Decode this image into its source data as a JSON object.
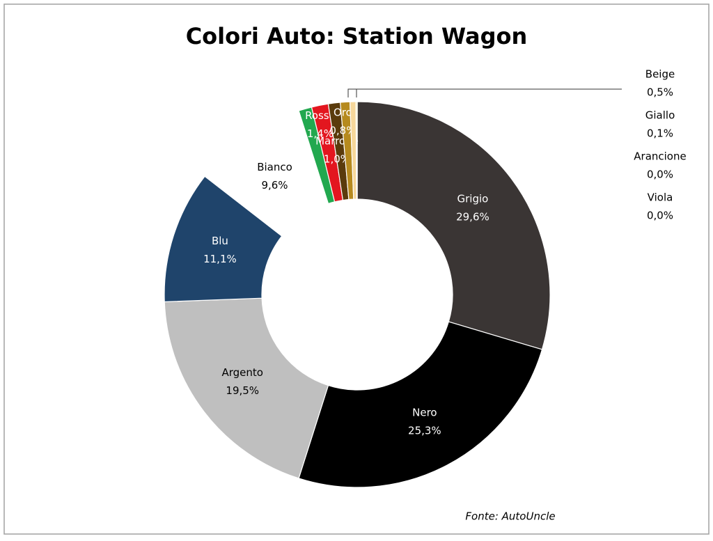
{
  "chart_data": {
    "type": "donut",
    "title": "Colori Auto: Station Wagon",
    "source": "Fonte: AutoUncle",
    "categories": [
      "Grigio",
      "Nero",
      "Argento",
      "Blu",
      "Bianco",
      null,
      "Rosso",
      "Marrone",
      "Oro",
      "Beige",
      "Giallo",
      "Arancione",
      "Viola"
    ],
    "values": [
      29.6,
      25.3,
      19.5,
      11.1,
      9.6,
      1.1,
      1.4,
      1.0,
      0.8,
      0.5,
      0.1,
      0.0,
      0.0
    ],
    "value_labels": [
      "29,6%",
      "25,3%",
      "19,5%",
      "11,1%",
      "9,6%",
      null,
      "1,4%",
      "1,0%",
      "0,8%",
      "0,5%",
      "0,1%",
      "0,0%",
      "0,0%"
    ],
    "colors": [
      "#3a3534",
      "#000000",
      "#bfbfbf",
      "#1f446b",
      "#ffffff",
      "#22a84f",
      "#e3161f",
      "#5a3b0c",
      "#b68a1e",
      "#f6d79a",
      "#ffe066",
      "#f08a24",
      "#7a3f9d"
    ]
  }
}
